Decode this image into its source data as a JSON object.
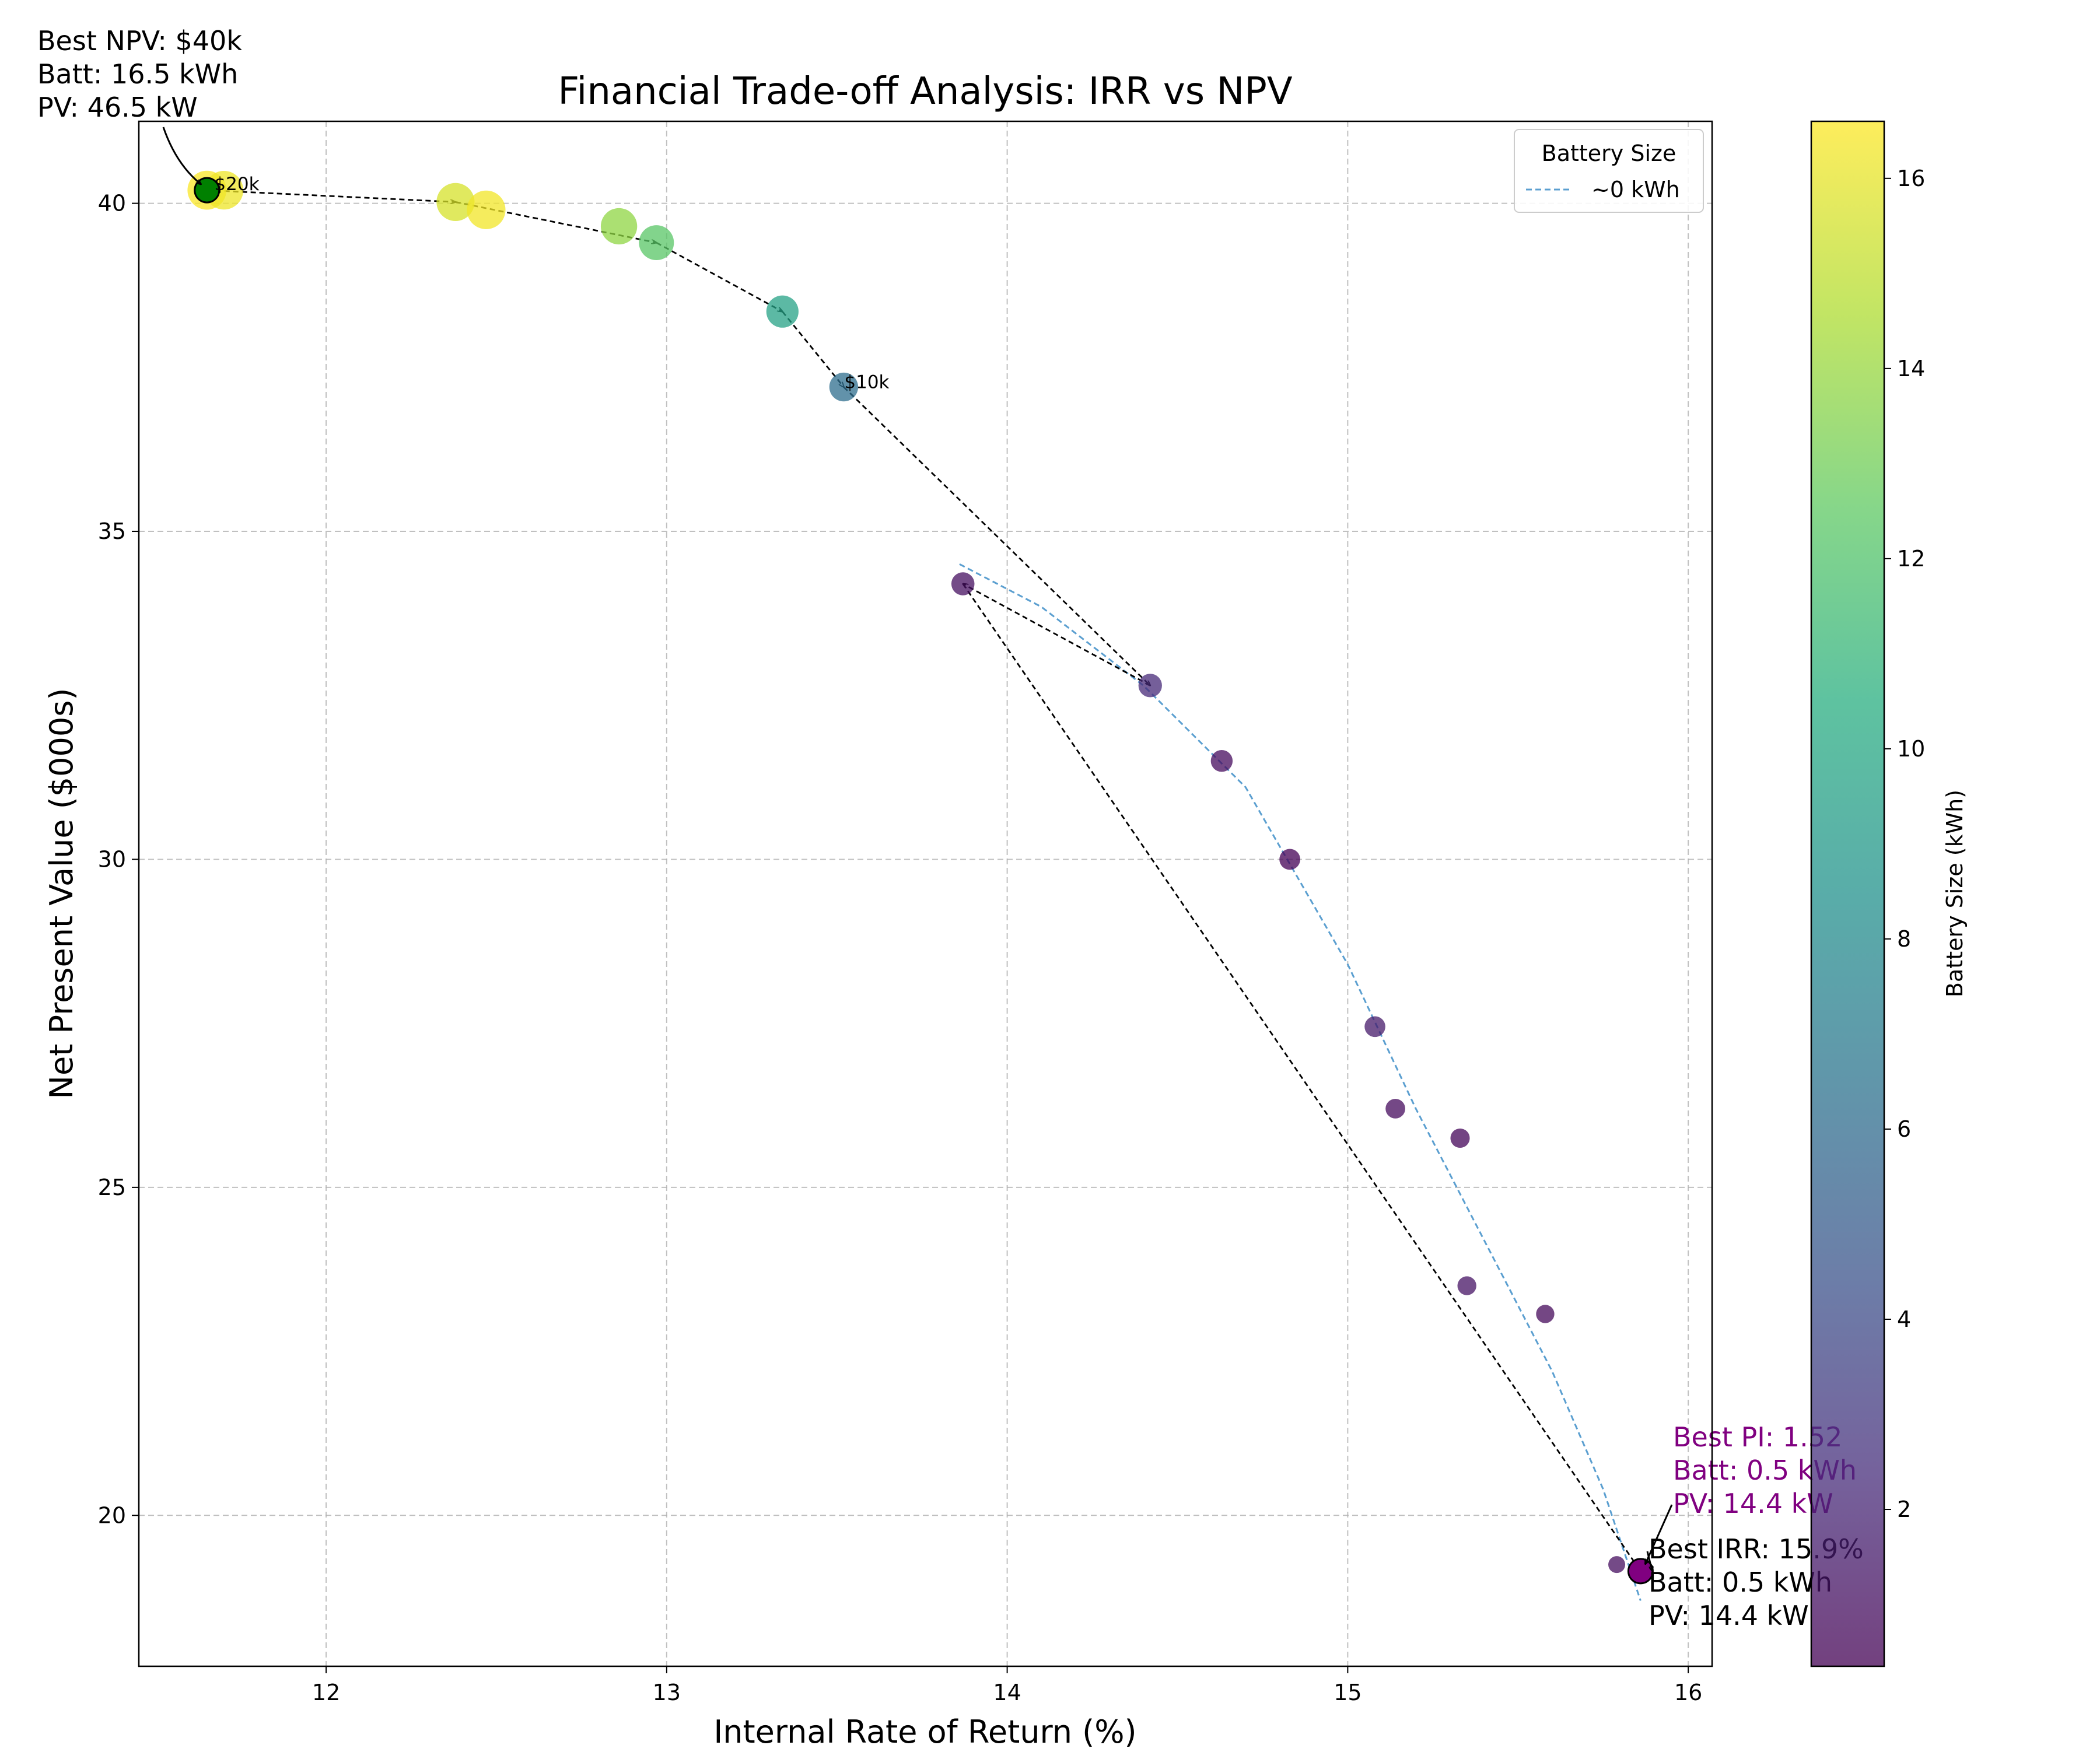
{
  "chart_data": {
    "type": "scatter",
    "title": "Financial Trade-off Analysis: IRR vs NPV",
    "xlabel": "Internal Rate of Return (%)",
    "ylabel": "Net Present Value ($000s)",
    "xlim": [
      11.45,
      16.07
    ],
    "ylim": [
      17.7,
      41.25
    ],
    "xticks": [
      12,
      13,
      14,
      15,
      16
    ],
    "yticks": [
      20,
      25,
      30,
      35,
      40
    ],
    "grid": true,
    "colorbar": {
      "label": "Battery Size (kWh)",
      "range": [
        0.35,
        16.6
      ],
      "ticks": [
        2,
        4,
        6,
        8,
        10,
        12,
        14,
        16
      ],
      "colormap": "viridis"
    },
    "legend": {
      "title": "Battery Size",
      "placement": "top-right",
      "entries": [
        "~0 kWh"
      ]
    },
    "points": [
      {
        "x": 11.65,
        "y": 40.2,
        "battery_kwh": 16.5
      },
      {
        "x": 11.7,
        "y": 40.2,
        "battery_kwh": 16.2
      },
      {
        "x": 12.38,
        "y": 40.02,
        "battery_kwh": 15.6
      },
      {
        "x": 12.47,
        "y": 39.9,
        "battery_kwh": 16.3
      },
      {
        "x": 12.86,
        "y": 39.65,
        "battery_kwh": 13.8
      },
      {
        "x": 12.97,
        "y": 39.4,
        "battery_kwh": 12.3
      },
      {
        "x": 13.34,
        "y": 38.35,
        "battery_kwh": 9.6
      },
      {
        "x": 13.52,
        "y": 37.2,
        "battery_kwh": 6.2
      },
      {
        "x": 13.87,
        "y": 34.2,
        "battery_kwh": 1.0
      },
      {
        "x": 14.42,
        "y": 32.65,
        "battery_kwh": 2.2
      },
      {
        "x": 14.63,
        "y": 31.5,
        "battery_kwh": 0.8
      },
      {
        "x": 14.83,
        "y": 30.0,
        "battery_kwh": 0.4
      },
      {
        "x": 15.08,
        "y": 27.45,
        "battery_kwh": 1.5
      },
      {
        "x": 15.14,
        "y": 26.2,
        "battery_kwh": 0.8
      },
      {
        "x": 15.33,
        "y": 25.75,
        "battery_kwh": 0.6
      },
      {
        "x": 15.35,
        "y": 23.5,
        "battery_kwh": 1.2
      },
      {
        "x": 15.58,
        "y": 23.07,
        "battery_kwh": 0.7
      },
      {
        "x": 15.79,
        "y": 19.25,
        "battery_kwh": 0.9
      },
      {
        "x": 15.86,
        "y": 19.15,
        "battery_kwh": 0.5
      }
    ],
    "frontier_path": [
      {
        "x": 11.65,
        "y": 40.2
      },
      {
        "x": 12.38,
        "y": 40.02
      },
      {
        "x": 12.97,
        "y": 39.4
      },
      {
        "x": 13.34,
        "y": 38.35
      },
      {
        "x": 13.52,
        "y": 37.2
      },
      {
        "x": 14.42,
        "y": 32.65
      },
      {
        "x": 13.87,
        "y": 34.2
      },
      {
        "x": 15.86,
        "y": 19.15
      }
    ],
    "fit_curve": {
      "name": "~0 kWh",
      "color": "#5b9fd0",
      "points": [
        {
          "x": 13.86,
          "y": 34.5
        },
        {
          "x": 14.1,
          "y": 33.85
        },
        {
          "x": 14.4,
          "y": 32.65
        },
        {
          "x": 14.7,
          "y": 31.1
        },
        {
          "x": 15.0,
          "y": 28.4
        },
        {
          "x": 15.2,
          "y": 26.2
        },
        {
          "x": 15.4,
          "y": 24.2
        },
        {
          "x": 15.6,
          "y": 22.2
        },
        {
          "x": 15.75,
          "y": 20.4
        },
        {
          "x": 15.86,
          "y": 18.7
        }
      ]
    },
    "best_npv": {
      "x": 11.65,
      "y": 40.2,
      "color": "#008000",
      "label_lines": [
        "Best NPV: $40k",
        "Batt: 16.5 kWh",
        "PV: 46.5 kW"
      ]
    },
    "best_irr": {
      "x": 15.86,
      "y": 19.15,
      "color": "#800080",
      "label_lines": [
        "Best IRR: 15.9%",
        "Batt: 0.5 kWh",
        "PV: 14.4 kW"
      ]
    },
    "best_pi": {
      "color": "#800080",
      "label_lines": [
        "Best PI: 1.52",
        "Batt: 0.5 kWh",
        "PV: 14.4 kW"
      ]
    },
    "cost_labels": [
      {
        "text": "$20k",
        "x": 11.67,
        "y": 40.22
      },
      {
        "text": "$10k",
        "x": 13.52,
        "y": 37.2
      }
    ]
  }
}
